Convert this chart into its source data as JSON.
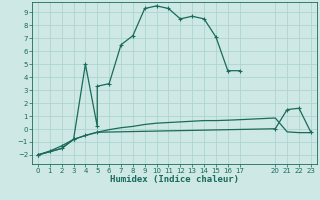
{
  "xlabel": "Humidex (Indice chaleur)",
  "bg_color": "#cde8e5",
  "grid_color": "#aed4d0",
  "line_color": "#1a6b5a",
  "xlim": [
    -0.5,
    23.5
  ],
  "ylim": [
    -2.7,
    9.8
  ],
  "xticks": [
    0,
    1,
    2,
    3,
    4,
    5,
    6,
    7,
    8,
    9,
    10,
    11,
    12,
    13,
    14,
    15,
    16,
    17,
    20,
    21,
    22,
    23
  ],
  "yticks": [
    -2,
    -1,
    0,
    1,
    2,
    3,
    4,
    5,
    6,
    7,
    8,
    9
  ],
  "curve1_x": [
    0,
    1,
    2,
    3,
    4,
    5,
    5,
    6,
    7,
    8,
    9,
    10,
    11,
    12,
    13,
    14,
    15,
    16,
    17
  ],
  "curve1_y": [
    -2.0,
    -1.7,
    -1.3,
    -0.8,
    5.0,
    0.2,
    3.3,
    3.5,
    6.5,
    7.2,
    9.3,
    9.5,
    9.3,
    8.5,
    8.7,
    8.5,
    7.1,
    4.5,
    4.5
  ],
  "curve2_x": [
    0,
    2,
    3,
    4,
    5,
    6,
    7,
    8,
    9,
    10,
    11,
    12,
    13,
    14,
    15,
    16,
    17,
    20,
    21,
    22,
    23
  ],
  "curve2_y": [
    -2.0,
    -1.5,
    -0.8,
    -0.5,
    -0.25,
    -0.05,
    0.1,
    0.2,
    0.35,
    0.45,
    0.5,
    0.55,
    0.6,
    0.65,
    0.65,
    0.68,
    0.72,
    0.85,
    -0.22,
    -0.28,
    -0.28
  ],
  "curve3_x": [
    0,
    2,
    3,
    4,
    5,
    20,
    21,
    22,
    23
  ],
  "curve3_y": [
    -2.0,
    -1.5,
    -0.8,
    -0.5,
    -0.25,
    0.02,
    1.5,
    1.6,
    -0.25
  ],
  "lw": 0.9,
  "marker_size": 3.5,
  "tick_fontsize": 5.0,
  "xlabel_fontsize": 6.5
}
